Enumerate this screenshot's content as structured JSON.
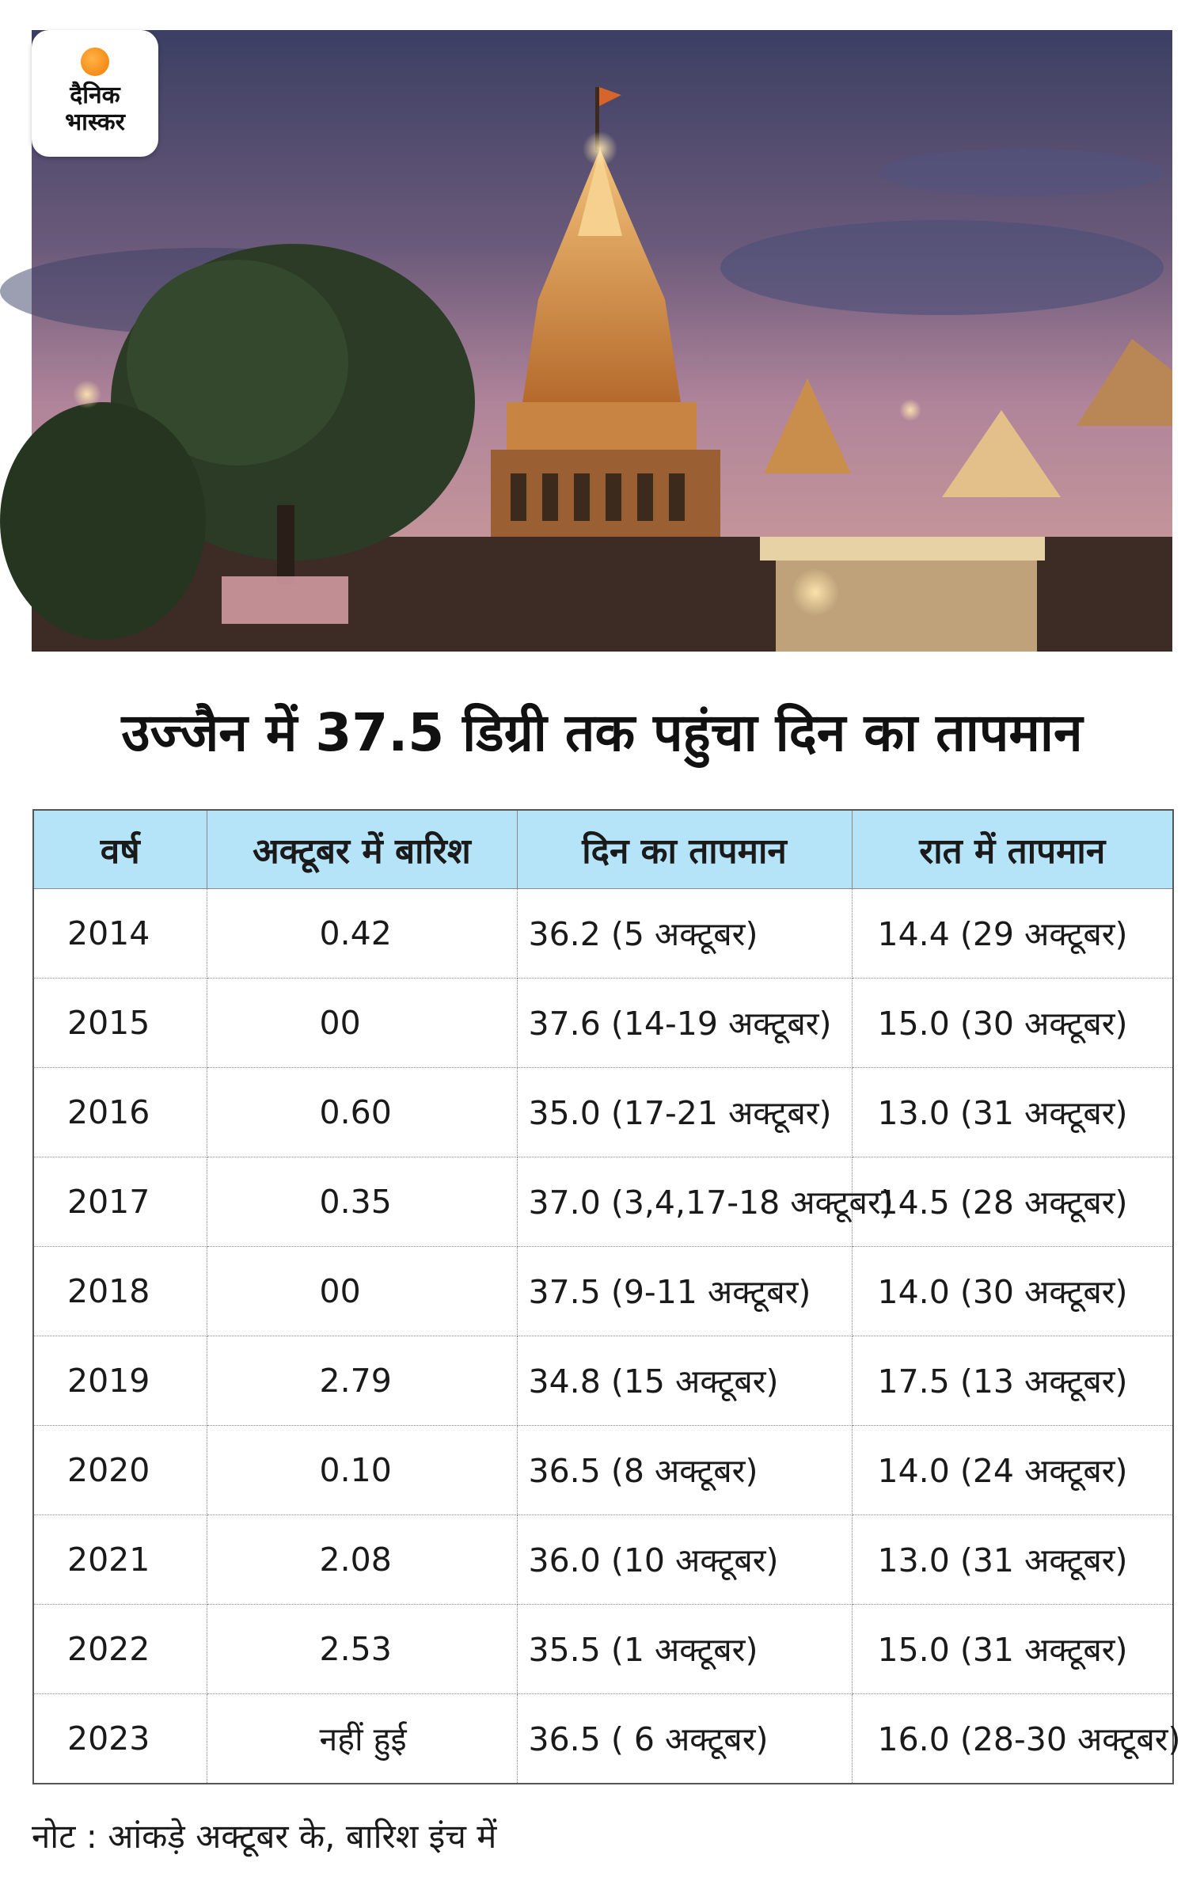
{
  "logo": {
    "line1": "दैनिक",
    "line2": "भास्कर",
    "accent_color": "#f07b00"
  },
  "photo": {
    "icon": "temple-photo"
  },
  "headline": "उज्जैन में 37.5 डिग्री तक पहुंचा दिन का तापमान",
  "table": {
    "header_color": "#b5e3f7",
    "columns": [
      "वर्ष",
      "अक्टूबर में बारिश",
      "दिन का तापमान",
      "रात में तापमान"
    ],
    "rows": [
      {
        "year": "2014",
        "rain": "0.42",
        "day": "36.2 (5 अक्टूबर)",
        "night": "14.4 (29 अक्टूबर)"
      },
      {
        "year": "2015",
        "rain": "00",
        "day": "37.6 (14-19 अक्टूबर)",
        "night": "15.0 (30 अक्टूबर)"
      },
      {
        "year": "2016",
        "rain": "0.60",
        "day": "35.0 (17-21 अक्टूबर)",
        "night": "13.0 (31 अक्टूबर)"
      },
      {
        "year": "2017",
        "rain": "0.35",
        "day": "37.0 (3,4,17-18 अक्टूबर)",
        "night": "14.5 (28 अक्टूबर)"
      },
      {
        "year": "2018",
        "rain": "00",
        "day": "37.5 (9-11 अक्टूबर)",
        "night": "14.0 (30 अक्टूबर)"
      },
      {
        "year": "2019",
        "rain": "2.79",
        "day": "34.8 (15 अक्टूबर)",
        "night": "17.5 (13 अक्टूबर)"
      },
      {
        "year": "2020",
        "rain": "0.10",
        "day": "36.5 (8 अक्टूबर)",
        "night": "14.0 (24 अक्टूबर)"
      },
      {
        "year": "2021",
        "rain": "2.08",
        "day": "36.0 (10 अक्टूबर)",
        "night": "13.0 (31 अक्टूबर)"
      },
      {
        "year": "2022",
        "rain": "2.53",
        "day": "35.5 (1 अक्टूबर)",
        "night": "15.0 (31 अक्टूबर)"
      },
      {
        "year": "2023",
        "rain": "नहीं हुई",
        "day": "36.5  ( 6 अक्टूबर)",
        "night": "16.0 (28-30 अक्टूबर)"
      }
    ]
  },
  "note": "नोट : आंकड़े अक्टूबर के, बारिश इंच में"
}
